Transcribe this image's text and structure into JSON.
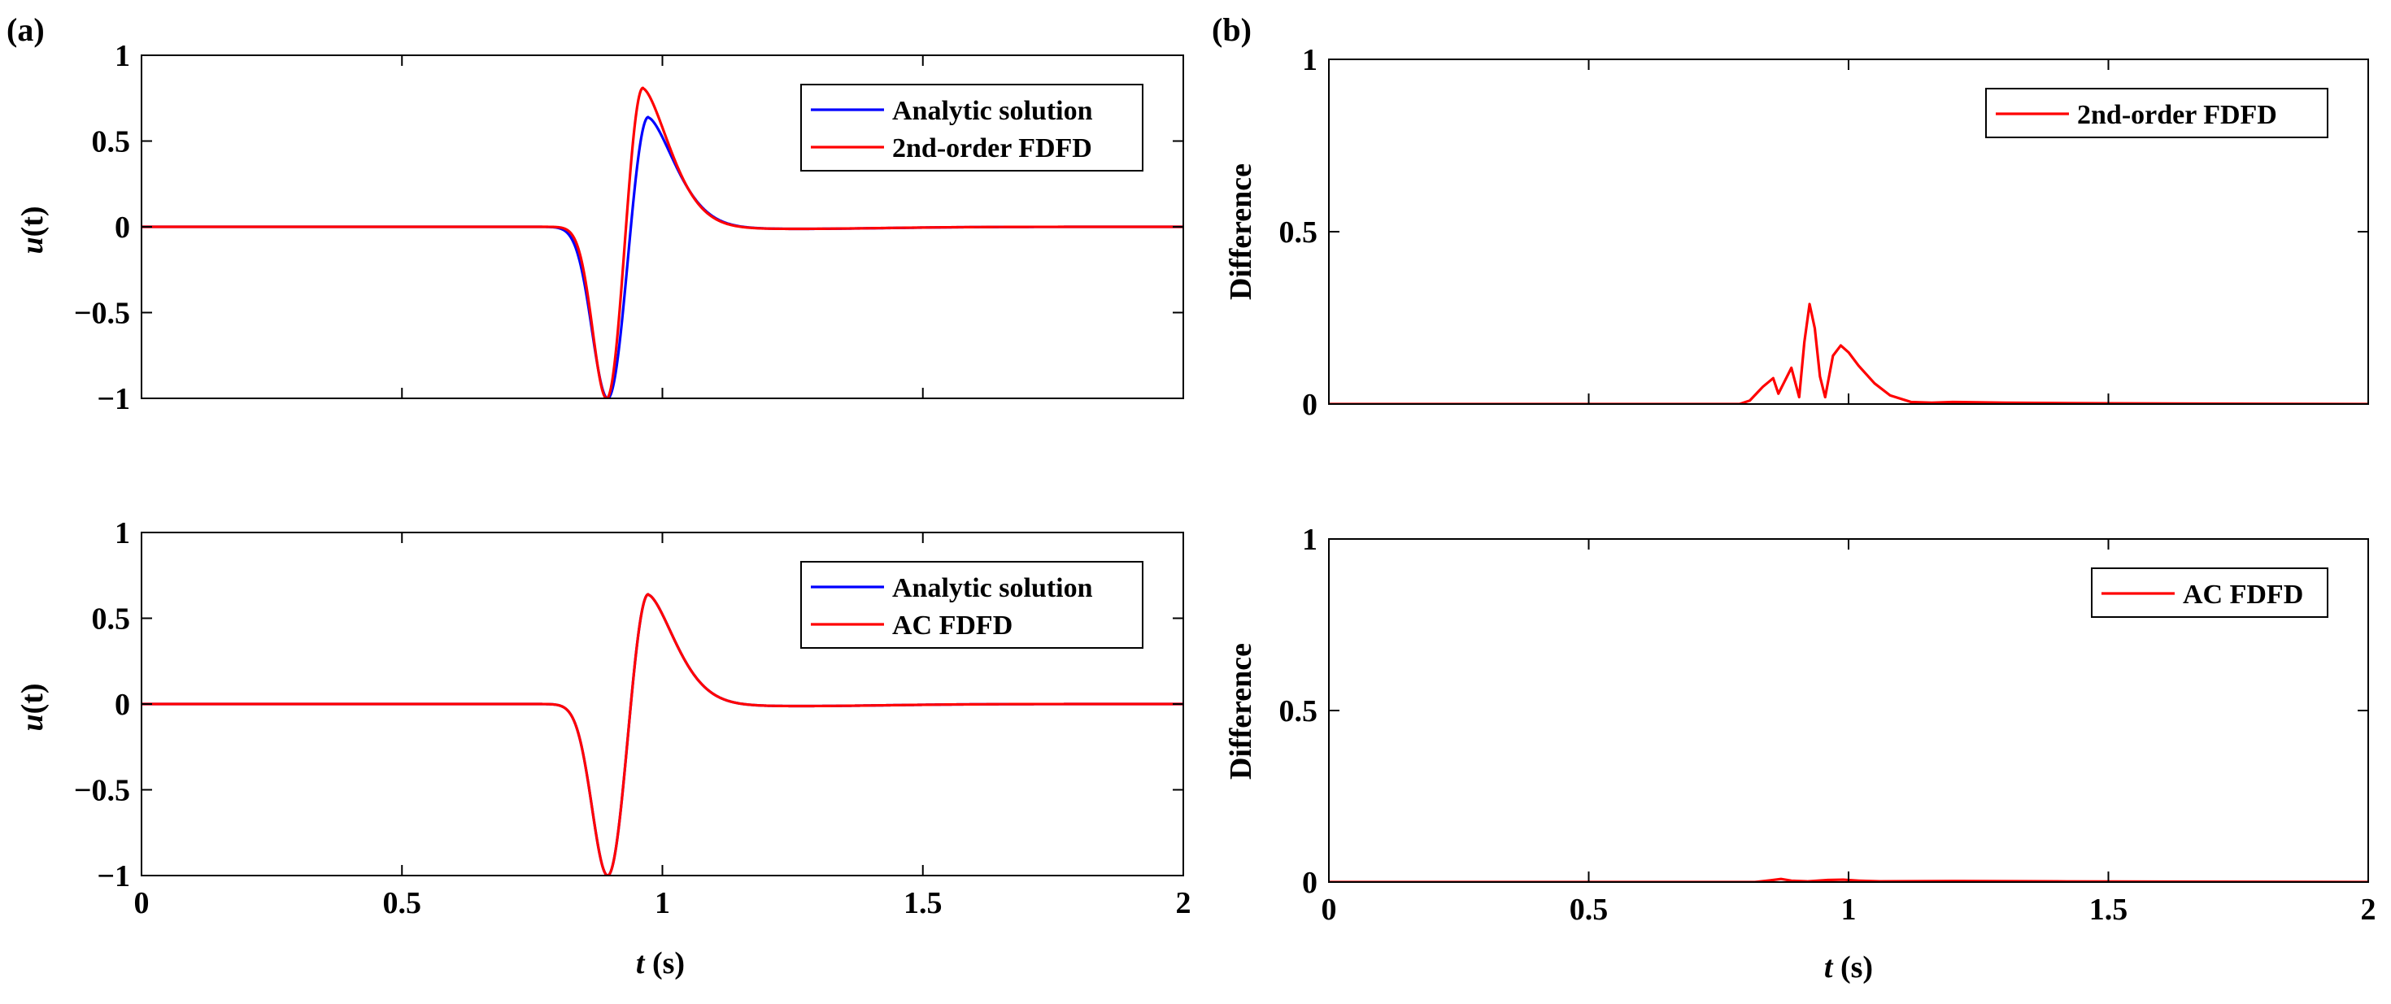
{
  "panel_labels": {
    "a": "(a)",
    "b": "(b)"
  },
  "xlabel": {
    "var": "t",
    "unit": " (s)"
  },
  "ylabel_u": {
    "var": "u",
    "paren": "(t)"
  },
  "ylabel_diff": "Difference",
  "chart_data": [
    {
      "id": "a1",
      "type": "line",
      "xlim": [
        0,
        2
      ],
      "ylim": [
        -1,
        1
      ],
      "xticks": [
        0,
        0.5,
        1,
        1.5,
        2
      ],
      "xtick_labels": [
        "",
        "",
        "",
        "",
        ""
      ],
      "yticks": [
        -1,
        -0.5,
        0,
        0.5,
        1
      ],
      "ytick_labels": [
        "−1",
        "−0.5",
        "0",
        "0.5",
        "1"
      ],
      "legend_position": "top-right",
      "series": [
        {
          "name": "Analytic solution",
          "color": "#0000ff",
          "model": "ricker",
          "t0": 0.895,
          "amp": 1.0,
          "tail": 0.64
        },
        {
          "name": "2nd-order FDFD",
          "color": "#ff0000",
          "model": "ricker",
          "t0": 0.893,
          "amp": 1.0,
          "tail": 0.81,
          "sharp": 1.12
        }
      ]
    },
    {
      "id": "a2",
      "type": "line",
      "xlim": [
        0,
        2
      ],
      "ylim": [
        -1,
        1
      ],
      "xticks": [
        0,
        0.5,
        1,
        1.5,
        2
      ],
      "xtick_labels": [
        "0",
        "0.5",
        "1",
        "1.5",
        "2"
      ],
      "yticks": [
        -1,
        -0.5,
        0,
        0.5,
        1
      ],
      "ytick_labels": [
        "−1",
        "−0.5",
        "0",
        "0.5",
        "1"
      ],
      "legend_position": "top-right",
      "series": [
        {
          "name": "Analytic solution",
          "color": "#0000ff",
          "model": "ricker",
          "t0": 0.895,
          "amp": 1.0,
          "tail": 0.64
        },
        {
          "name": "AC FDFD",
          "color": "#ff0000",
          "model": "ricker",
          "t0": 0.895,
          "amp": 1.0,
          "tail": 0.64
        }
      ]
    },
    {
      "id": "b1",
      "type": "line",
      "xlim": [
        0,
        2
      ],
      "ylim": [
        0,
        1
      ],
      "xticks": [
        0,
        0.5,
        1,
        1.5,
        2
      ],
      "xtick_labels": [
        "",
        "",
        "",
        "",
        ""
      ],
      "yticks": [
        0,
        0.5,
        1
      ],
      "ytick_labels": [
        "0",
        "0.5",
        "1"
      ],
      "legend_position": "top-right",
      "series": [
        {
          "name": "2nd-order FDFD",
          "color": "#ff0000",
          "model": "points",
          "x": [
            0,
            0.79,
            0.81,
            0.835,
            0.855,
            0.865,
            0.875,
            0.89,
            0.905,
            0.915,
            0.925,
            0.935,
            0.945,
            0.955,
            0.97,
            0.985,
            1.0,
            1.02,
            1.05,
            1.08,
            1.12,
            1.16,
            1.2,
            1.3,
            1.5,
            2.0
          ],
          "y": [
            0,
            0,
            0.01,
            0.05,
            0.075,
            0.03,
            0.06,
            0.105,
            0.02,
            0.18,
            0.29,
            0.22,
            0.08,
            0.02,
            0.14,
            0.17,
            0.15,
            0.11,
            0.06,
            0.025,
            0.006,
            0.004,
            0.006,
            0.004,
            0.002,
            0
          ]
        }
      ]
    },
    {
      "id": "b2",
      "type": "line",
      "xlim": [
        0,
        2
      ],
      "ylim": [
        0,
        1
      ],
      "xticks": [
        0,
        0.5,
        1,
        1.5,
        2
      ],
      "xtick_labels": [
        "0",
        "0.5",
        "1",
        "1.5",
        "2"
      ],
      "yticks": [
        0,
        0.5,
        1
      ],
      "ytick_labels": [
        "0",
        "0.5",
        "1"
      ],
      "legend_position": "top-right",
      "series": [
        {
          "name": "AC FDFD",
          "color": "#ff0000",
          "model": "points",
          "x": [
            0,
            0.82,
            0.85,
            0.87,
            0.89,
            0.92,
            0.96,
            0.99,
            1.02,
            1.06,
            1.2,
            1.4,
            2.0
          ],
          "y": [
            0,
            0,
            0.005,
            0.009,
            0.004,
            0.002,
            0.006,
            0.007,
            0.004,
            0.002,
            0.003,
            0.002,
            0
          ]
        }
      ]
    }
  ]
}
